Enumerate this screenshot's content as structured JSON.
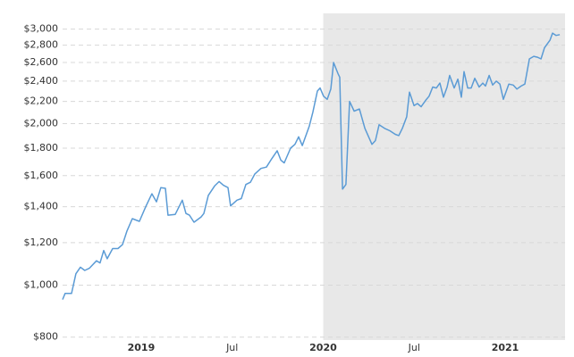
{
  "chart_data": {
    "type": "line",
    "x": [
      2018.568,
      2018.582,
      2018.617,
      2018.641,
      2018.666,
      2018.69,
      2018.715,
      2018.754,
      2018.774,
      2018.794,
      2018.813,
      2018.843,
      2018.872,
      2018.897,
      2018.921,
      2018.951,
      2018.99,
      2019.025,
      2019.059,
      2019.084,
      2019.108,
      2019.133,
      2019.147,
      2019.187,
      2019.226,
      2019.246,
      2019.265,
      2019.29,
      2019.329,
      2019.344,
      2019.369,
      2019.403,
      2019.428,
      2019.452,
      2019.477,
      2019.491,
      2019.526,
      2019.55,
      2019.575,
      2019.6,
      2019.624,
      2019.658,
      2019.688,
      2019.717,
      2019.747,
      2019.767,
      2019.786,
      2019.821,
      2019.845,
      2019.865,
      2019.885,
      2019.924,
      2019.943,
      2019.968,
      2019.983,
      2020.002,
      2020.022,
      2020.042,
      2020.057,
      2020.081,
      2020.091,
      2020.106,
      2020.125,
      2020.145,
      2020.17,
      2020.199,
      2020.229,
      2020.268,
      2020.287,
      2020.307,
      2020.337,
      2020.366,
      2020.396,
      2020.415,
      2020.435,
      2020.459,
      2020.474,
      2020.499,
      2020.518,
      2020.538,
      2020.563,
      2020.582,
      2020.602,
      2020.622,
      2020.641,
      2020.661,
      2020.681,
      2020.695,
      2020.72,
      2020.74,
      2020.759,
      2020.774,
      2020.794,
      2020.813,
      2020.833,
      2020.857,
      2020.877,
      2020.892,
      2020.912,
      2020.931,
      2020.951,
      2020.971,
      2020.99,
      2021.02,
      2021.044,
      2021.064,
      2021.088,
      2021.108,
      2021.133,
      2021.157,
      2021.177,
      2021.197,
      2021.216,
      2021.246,
      2021.26,
      2021.28,
      2021.3
    ],
    "series": [
      {
        "color": "#5b9bd5",
        "values": [
          940,
          965,
          965,
          1050,
          1080,
          1065,
          1075,
          1110,
          1100,
          1160,
          1120,
          1170,
          1170,
          1190,
          1260,
          1330,
          1315,
          1400,
          1480,
          1430,
          1520,
          1515,
          1350,
          1355,
          1440,
          1360,
          1350,
          1310,
          1340,
          1360,
          1470,
          1530,
          1560,
          1535,
          1520,
          1405,
          1440,
          1450,
          1540,
          1555,
          1610,
          1650,
          1660,
          1720,
          1780,
          1710,
          1690,
          1800,
          1830,
          1890,
          1820,
          1980,
          2100,
          2300,
          2330,
          2250,
          2220,
          2320,
          2600,
          2480,
          2440,
          1510,
          1540,
          2200,
          2110,
          2130,
          1960,
          1830,
          1860,
          1990,
          1960,
          1940,
          1910,
          1900,
          1960,
          2060,
          2290,
          2160,
          2180,
          2150,
          2210,
          2250,
          2340,
          2330,
          2380,
          2240,
          2340,
          2460,
          2330,
          2420,
          2240,
          2500,
          2330,
          2330,
          2430,
          2340,
          2380,
          2350,
          2460,
          2360,
          2400,
          2370,
          2220,
          2370,
          2360,
          2320,
          2350,
          2370,
          2640,
          2670,
          2660,
          2640,
          2770,
          2860,
          2950,
          2920,
          2930
        ]
      }
    ],
    "xlim": [
      2018.568,
      2021.329
    ],
    "xticks": [
      {
        "value": 2019,
        "label": "2019"
      },
      {
        "value": 2019.5,
        "label": "Jul"
      },
      {
        "value": 2020,
        "label": "2020"
      },
      {
        "value": 2020.5,
        "label": "Jul"
      },
      {
        "value": 2021,
        "label": "2021"
      }
    ],
    "ylim": [
      790,
      3210
    ],
    "log_y": true,
    "yticks": [
      {
        "value": 800,
        "label": "$800"
      },
      {
        "value": 1000,
        "label": "$1,000"
      },
      {
        "value": 1200,
        "label": "$1,200"
      },
      {
        "value": 1400,
        "label": "$1,400"
      },
      {
        "value": 1600,
        "label": "$1,600"
      },
      {
        "value": 1800,
        "label": "$1,800"
      },
      {
        "value": 2000,
        "label": "$2,000"
      },
      {
        "value": 2200,
        "label": "$2,200"
      },
      {
        "value": 2400,
        "label": "$2,400"
      },
      {
        "value": 2600,
        "label": "$2,600"
      },
      {
        "value": 2800,
        "label": "$2,800"
      },
      {
        "value": 3000,
        "label": "$3,000"
      }
    ],
    "grid": true,
    "shaded_range": [
      2020,
      2021.329
    ],
    "shade_color": "#e8e8e8"
  }
}
